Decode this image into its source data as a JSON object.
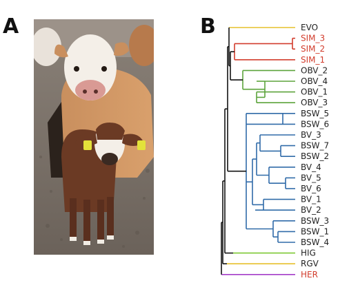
{
  "panel_a": {
    "letter": "A",
    "image": "photo-cows"
  },
  "panel_b": {
    "letter": "B",
    "leaves": [
      {
        "label": "EVO",
        "color": "#222222",
        "branch_color": "#e6c02a"
      },
      {
        "label": "SIM_3",
        "color": "#d23c2c",
        "branch_color": "#d23c2c"
      },
      {
        "label": "SIM_2",
        "color": "#d23c2c",
        "branch_color": "#d23c2c"
      },
      {
        "label": "SIM_1",
        "color": "#d23c2c",
        "branch_color": "#d23c2c"
      },
      {
        "label": "OBV_2",
        "color": "#222222",
        "branch_color": "#5ba33a"
      },
      {
        "label": "OBV_4",
        "color": "#222222",
        "branch_color": "#5ba33a"
      },
      {
        "label": "OBV_1",
        "color": "#222222",
        "branch_color": "#5ba33a"
      },
      {
        "label": "OBV_3",
        "color": "#222222",
        "branch_color": "#5ba33a"
      },
      {
        "label": "BSW_5",
        "color": "#222222",
        "branch_color": "#2f6aa8"
      },
      {
        "label": "BSW_6",
        "color": "#222222",
        "branch_color": "#2f6aa8"
      },
      {
        "label": "BV_3",
        "color": "#222222",
        "branch_color": "#2f6aa8"
      },
      {
        "label": "BSW_7",
        "color": "#222222",
        "branch_color": "#2f6aa8"
      },
      {
        "label": "BSW_2",
        "color": "#222222",
        "branch_color": "#2f6aa8"
      },
      {
        "label": "BV_4",
        "color": "#222222",
        "branch_color": "#2f6aa8"
      },
      {
        "label": "BV_5",
        "color": "#222222",
        "branch_color": "#2f6aa8"
      },
      {
        "label": "BV_6",
        "color": "#222222",
        "branch_color": "#2f6aa8"
      },
      {
        "label": "BV_1",
        "color": "#222222",
        "branch_color": "#2f6aa8"
      },
      {
        "label": "BV_2",
        "color": "#222222",
        "branch_color": "#2f6aa8"
      },
      {
        "label": "BSW_3",
        "color": "#222222",
        "branch_color": "#2f6aa8"
      },
      {
        "label": "BSW_1",
        "color": "#222222",
        "branch_color": "#2f6aa8"
      },
      {
        "label": "BSW_4",
        "color": "#222222",
        "branch_color": "#2f6aa8"
      },
      {
        "label": "HIG",
        "color": "#222222",
        "branch_color": "#7cc832"
      },
      {
        "label": "RGV",
        "color": "#222222",
        "branch_color": "#e6c02a"
      },
      {
        "label": "HER",
        "color": "#d23c2c",
        "branch_color": "#a33cc8"
      }
    ],
    "colors": {
      "backbone": "#111111",
      "simmental": "#d23c2c",
      "obv": "#5ba33a",
      "brown_swiss": "#2f6aa8",
      "hig": "#7cc832",
      "yellow": "#e6c02a",
      "her": "#a33cc8"
    }
  }
}
